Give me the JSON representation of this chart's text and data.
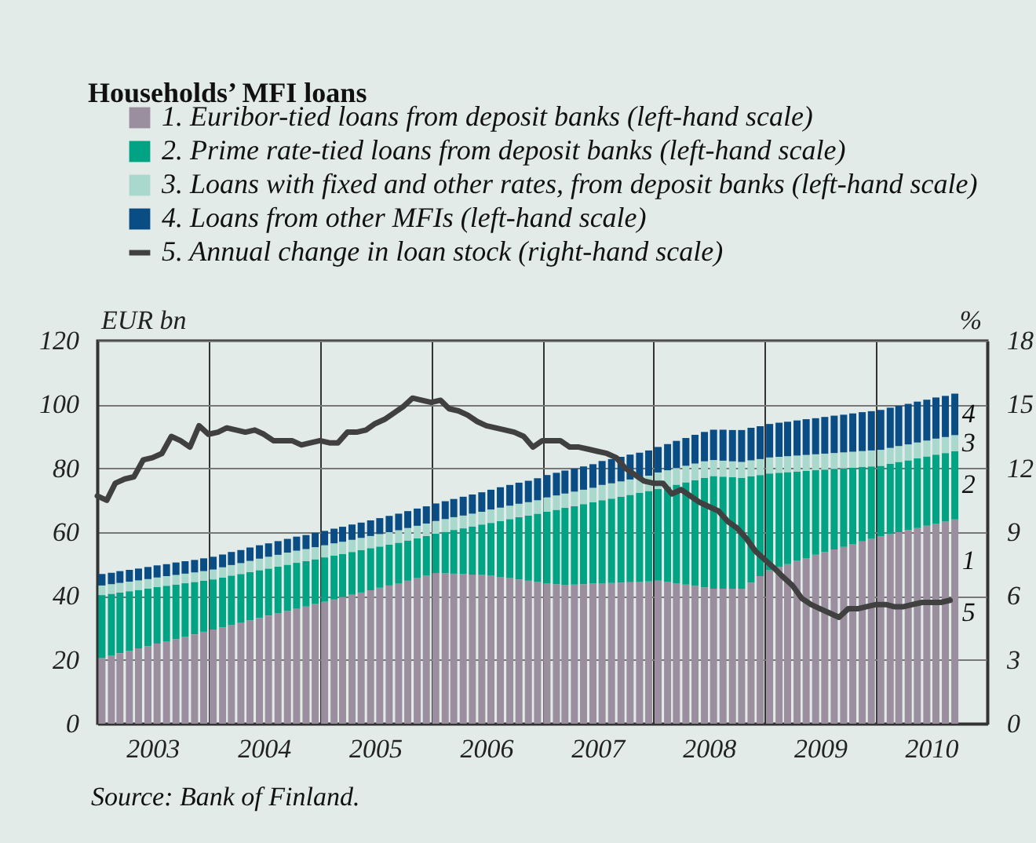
{
  "chart_data": {
    "type": "bar",
    "stacked": true,
    "title": "Households’ MFI loans",
    "ylabel": "EUR bn",
    "y2label": "%",
    "x": [
      "2003-01",
      "2003-02",
      "2003-03",
      "2003-04",
      "2003-05",
      "2003-06",
      "2003-07",
      "2003-08",
      "2003-09",
      "2003-10",
      "2003-11",
      "2003-12",
      "2004-01",
      "2004-02",
      "2004-03",
      "2004-04",
      "2004-05",
      "2004-06",
      "2004-07",
      "2004-08",
      "2004-09",
      "2004-10",
      "2004-11",
      "2004-12",
      "2005-01",
      "2005-02",
      "2005-03",
      "2005-04",
      "2005-05",
      "2005-06",
      "2005-07",
      "2005-08",
      "2005-09",
      "2005-10",
      "2005-11",
      "2005-12",
      "2006-01",
      "2006-02",
      "2006-03",
      "2006-04",
      "2006-05",
      "2006-06",
      "2006-07",
      "2006-08",
      "2006-09",
      "2006-10",
      "2006-11",
      "2006-12",
      "2007-01",
      "2007-02",
      "2007-03",
      "2007-04",
      "2007-05",
      "2007-06",
      "2007-07",
      "2007-08",
      "2007-09",
      "2007-10",
      "2007-11",
      "2007-12",
      "2008-01",
      "2008-02",
      "2008-03",
      "2008-04",
      "2008-05",
      "2008-06",
      "2008-07",
      "2008-08",
      "2008-09",
      "2008-10",
      "2008-11",
      "2008-12",
      "2009-01",
      "2009-02",
      "2009-03",
      "2009-04",
      "2009-05",
      "2009-06",
      "2009-07",
      "2009-08",
      "2009-09",
      "2009-10",
      "2009-11",
      "2009-12",
      "2010-01",
      "2010-02",
      "2010-03",
      "2010-04",
      "2010-05",
      "2010-06",
      "2010-07",
      "2010-08",
      "2010-09"
    ],
    "series": [
      {
        "name": "1. Euribor-tied loans from deposit banks (left-hand scale)",
        "color": "#9b8f9f",
        "values": [
          20.6,
          21.3,
          22.1,
          22.8,
          23.6,
          24.3,
          25.1,
          25.8,
          26.5,
          27.3,
          28.0,
          28.8,
          29.5,
          30.2,
          30.9,
          31.7,
          32.4,
          33.1,
          33.9,
          34.6,
          35.3,
          36.0,
          36.7,
          37.5,
          38.2,
          38.9,
          39.7,
          40.4,
          41.1,
          41.8,
          42.6,
          43.3,
          44.0,
          44.8,
          45.6,
          46.4,
          47.2,
          47.1,
          47.0,
          46.9,
          46.7,
          46.6,
          46.4,
          46.0,
          45.6,
          45.2,
          44.8,
          44.4,
          44.0,
          43.7,
          43.5,
          43.6,
          43.7,
          43.9,
          44.0,
          44.1,
          44.2,
          44.3,
          44.5,
          44.6,
          44.8,
          44.4,
          44.0,
          43.6,
          43.2,
          42.7,
          42.3,
          42.3,
          42.3,
          42.3,
          44.2,
          46.2,
          48.1,
          49.1,
          50.0,
          51.0,
          51.9,
          52.9,
          53.8,
          54.6,
          55.4,
          56.3,
          57.1,
          57.9,
          58.7,
          59.4,
          60.0,
          60.7,
          61.3,
          62.0,
          62.7,
          63.3,
          64.0
        ]
      },
      {
        "name": "2. Prime rate-tied loans from deposit banks (left-hand scale)",
        "color": "#00a384",
        "values": [
          19.7,
          19.4,
          19.0,
          18.7,
          18.3,
          18.0,
          17.7,
          17.4,
          17.1,
          16.7,
          16.4,
          16.0,
          15.7,
          15.6,
          15.5,
          15.2,
          15.1,
          15.0,
          14.7,
          14.6,
          14.5,
          14.4,
          14.2,
          14.0,
          13.9,
          13.8,
          13.5,
          13.4,
          13.3,
          13.2,
          12.9,
          12.8,
          12.7,
          12.6,
          12.5,
          12.4,
          12.3,
          13.0,
          13.7,
          14.3,
          15.1,
          15.8,
          16.5,
          17.5,
          18.5,
          19.5,
          20.4,
          21.4,
          22.4,
          23.3,
          24.1,
          24.6,
          25.1,
          25.5,
          26.0,
          26.4,
          26.9,
          27.4,
          27.8,
          28.3,
          28.7,
          29.8,
          30.9,
          32.0,
          33.1,
          34.3,
          35.3,
          35.1,
          34.9,
          34.7,
          33.3,
          31.7,
          30.3,
          29.5,
          28.8,
          28.0,
          27.3,
          26.5,
          25.8,
          25.2,
          24.6,
          23.9,
          23.3,
          22.7,
          22.1,
          22.0,
          22.0,
          21.8,
          21.8,
          21.7,
          21.6,
          21.5,
          21.4
        ]
      },
      {
        "name": "3. Loans with fixed and other rates, from deposit banks (left-hand scale)",
        "color": "#a8d9cc",
        "values": [
          3.0,
          3.0,
          3.0,
          3.0,
          3.0,
          3.0,
          3.0,
          3.0,
          3.0,
          3.0,
          3.0,
          3.0,
          3.1,
          3.2,
          3.3,
          3.4,
          3.5,
          3.6,
          3.7,
          3.7,
          3.8,
          3.8,
          3.8,
          3.8,
          3.8,
          3.8,
          3.8,
          3.8,
          3.8,
          3.8,
          3.9,
          3.9,
          3.9,
          3.9,
          3.9,
          3.9,
          4.0,
          4.0,
          4.0,
          4.0,
          4.0,
          4.0,
          4.2,
          4.2,
          4.2,
          4.2,
          4.2,
          4.2,
          4.5,
          4.5,
          4.5,
          4.5,
          4.5,
          4.5,
          4.8,
          4.8,
          4.8,
          4.8,
          4.8,
          4.8,
          5.2,
          5.2,
          5.2,
          5.2,
          5.2,
          5.2,
          5.0,
          5.0,
          5.0,
          5.0,
          5.0,
          5.0,
          5.0,
          5.0,
          5.0,
          5.0,
          5.0,
          5.0,
          5.0,
          5.0,
          5.0,
          5.0,
          5.0,
          5.0,
          5.0,
          5.0,
          5.0,
          5.0,
          5.0,
          5.0,
          5.0,
          5.0,
          5.0
        ]
      },
      {
        "name": "4. Loans from other MFIs (left-hand scale)",
        "color": "#0a4d85",
        "values": [
          3.6,
          3.6,
          3.7,
          3.7,
          3.7,
          3.8,
          3.8,
          3.8,
          3.9,
          3.9,
          3.9,
          4.0,
          4.0,
          4.0,
          4.1,
          4.1,
          4.2,
          4.2,
          4.2,
          4.3,
          4.3,
          4.4,
          4.4,
          4.5,
          4.5,
          4.6,
          4.7,
          4.8,
          4.8,
          4.9,
          5.0,
          5.1,
          5.2,
          5.3,
          5.4,
          5.4,
          5.5,
          5.6,
          5.7,
          5.9,
          6.0,
          6.1,
          6.2,
          6.4,
          6.5,
          6.6,
          6.7,
          6.9,
          7.0,
          7.1,
          7.2,
          7.2,
          7.3,
          7.4,
          7.5,
          7.6,
          7.7,
          7.8,
          7.8,
          7.9,
          8.0,
          8.2,
          8.5,
          8.7,
          9.0,
          9.2,
          9.5,
          9.7,
          9.8,
          10.0,
          10.2,
          10.3,
          10.5,
          10.7,
          10.8,
          11.0,
          11.2,
          11.3,
          11.5,
          11.7,
          11.8,
          12.0,
          12.2,
          12.3,
          12.5,
          12.6,
          12.6,
          12.7,
          12.8,
          12.8,
          12.9,
          12.9,
          13.0
        ]
      },
      {
        "name": "5. Annual change in loan stock (right-hand scale)",
        "type": "line",
        "axis": "y2",
        "color": "#404040",
        "values": [
          10.7,
          10.5,
          11.3,
          11.5,
          11.6,
          12.4,
          12.5,
          12.7,
          13.5,
          13.3,
          13.0,
          14.0,
          13.6,
          13.7,
          13.9,
          13.8,
          13.7,
          13.8,
          13.6,
          13.3,
          13.3,
          13.3,
          13.1,
          13.2,
          13.3,
          13.2,
          13.2,
          13.7,
          13.7,
          13.8,
          14.1,
          14.3,
          14.6,
          14.9,
          15.3,
          15.2,
          15.1,
          15.2,
          14.8,
          14.7,
          14.5,
          14.2,
          14.0,
          13.9,
          13.8,
          13.7,
          13.5,
          13.0,
          13.3,
          13.3,
          13.3,
          13.0,
          13.0,
          12.9,
          12.8,
          12.7,
          12.5,
          12.0,
          11.7,
          11.4,
          11.3,
          11.3,
          10.8,
          11.0,
          10.7,
          10.4,
          10.2,
          10.0,
          9.5,
          9.2,
          8.7,
          8.1,
          7.7,
          7.3,
          6.9,
          6.5,
          5.9,
          5.6,
          5.4,
          5.2,
          5.0,
          5.4,
          5.4,
          5.5,
          5.6,
          5.6,
          5.5,
          5.5,
          5.6,
          5.7,
          5.7,
          5.7,
          5.8
        ]
      }
    ],
    "xlim": [
      "2003-01",
      "2011-01"
    ],
    "xticks": [
      {
        "value": "2003-07",
        "label": "2003"
      },
      {
        "value": "2004-01",
        "label": null
      },
      {
        "value": "2004-07",
        "label": "2004"
      },
      {
        "value": "2005-01",
        "label": null
      },
      {
        "value": "2005-07",
        "label": "2005"
      },
      {
        "value": "2006-01",
        "label": null
      },
      {
        "value": "2006-07",
        "label": "2006"
      },
      {
        "value": "2007-01",
        "label": null
      },
      {
        "value": "2007-07",
        "label": "2007"
      },
      {
        "value": "2008-01",
        "label": null
      },
      {
        "value": "2008-07",
        "label": "2008"
      },
      {
        "value": "2009-01",
        "label": null
      },
      {
        "value": "2009-07",
        "label": "2009"
      },
      {
        "value": "2010-01",
        "label": null
      },
      {
        "value": "2010-07",
        "label": "2010"
      }
    ],
    "ylim": [
      0,
      120
    ],
    "yticks": [
      0,
      20,
      40,
      60,
      80,
      100,
      120
    ],
    "y2lim": [
      0,
      18
    ],
    "y2ticks": [
      0,
      3,
      6,
      9,
      12,
      15,
      18
    ],
    "grid": true,
    "legend": "top",
    "annotations": [
      "1",
      "2",
      "3",
      "4",
      "5",
      "Source: Bank of Finland."
    ]
  }
}
